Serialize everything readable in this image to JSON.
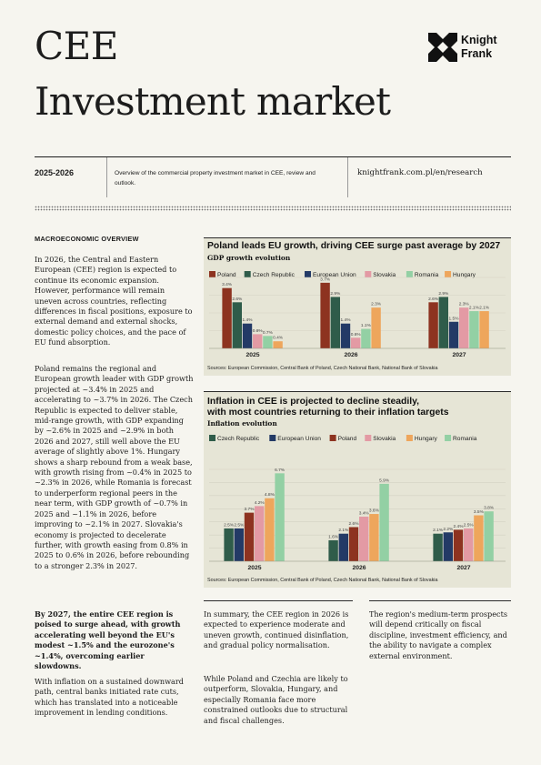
{
  "header": {
    "title_line1": "CEE",
    "title_line2": "Investment market",
    "logo_text_line1": "Knight",
    "logo_text_line2": "Frank"
  },
  "meta": {
    "year": "2025-2026",
    "description": "Overview of the commercial property investment market in CEE, review and outlook.",
    "url": "knightfrank.com.pl/en/research"
  },
  "macro": {
    "heading": "MACROECONOMIC OVERVIEW",
    "p1": "In 2026, the Central and Eastern European (CEE) region is expected to continue its economic expansion. However, performance will remain uneven across countries, reflecting differences in fiscal positions, exposure to external demand and external shocks, domestic policy choices, and the pace of EU fund absorption.",
    "p2": "Poland remains the regional and European growth leader with GDP growth projected at ~3.4% in 2025 and accelerating to ~3.7% in 2026. The Czech Republic is expected to deliver stable, mid-range growth, with GDP expanding by ~2.6% in 2025 and ~2.9% in both 2026 and 2027, still well above the EU average of slightly above 1%. Hungary shows a sharp rebound from a weak base, with growth rising from ~0.4% in 2025 to ~2.3% in 2026, while Romania is forecast to underperform regional peers in the near term, with GDP growth of ~0.7% in 2025 and ~1.1% in 2026, before improving to ~2.1% in 2027. Slovakia's economy is projected to decelerate further, with growth easing from 0.8% in 2025 to 0.6% in 2026, before rebounding to a stronger 2.3% in 2027.",
    "p3": "By 2027, the entire CEE region is poised to surge ahead, with growth accelerating well beyond the EU's modest ~1.5% and the eurozone's ~1.4%, overcoming earlier slowdowns.",
    "p4": "With inflation on a sustained downward path, central banks initiated rate cuts, which has translated into a noticeable improvement in lending conditions."
  },
  "chart1": {
    "title": "Poland leads EU growth, driving CEE surge past average by 2027",
    "subtitle": "GDP growth evolution",
    "source": "Sources: European Commission, Central Bank of Poland, Czech National Bank, National Bank of Slovakia"
  },
  "chart2": {
    "title_line1": "Inflation in CEE is projected to decline steadily,",
    "title_line2": "with most countries returning to their inflation targets",
    "subtitle": "Inflation evolution",
    "source": "Sources: European Commission, Central Bank of Poland, Czech National Bank, National Bank of Slovakia"
  },
  "summary": {
    "p1": "In summary, the CEE region in 2026 is expected to experience moderate and uneven growth, continued disinflation, and gradual policy normalisation.",
    "p2": "While Poland and Czechia are likely to outperform, Slovakia, Hungary, and especially Romania face more constrained outlooks due to structural and fiscal challenges.",
    "p3": "The region's medium-term prospects will depend critically on fiscal discipline, investment efficiency, and the ability to navigate a complex external environment."
  },
  "chart_data": [
    {
      "type": "bar",
      "title": "Poland leads EU growth, driving CEE surge past average by 2027",
      "subtitle": "GDP growth evolution",
      "categories": [
        "2025",
        "2026",
        "2027"
      ],
      "series": [
        {
          "name": "Poland",
          "color": "#8d3320",
          "values": [
            3.4,
            3.7,
            2.6
          ],
          "labels": [
            "3.4%",
            "3.7%",
            "2.6%"
          ]
        },
        {
          "name": "Czech Republic",
          "color": "#2f5c4a",
          "values": [
            2.6,
            2.9,
            2.9
          ],
          "labels": [
            "2.6%",
            "2.9%",
            "2.9%"
          ]
        },
        {
          "name": "European Union",
          "color": "#233a66",
          "values": [
            1.4,
            1.4,
            1.5
          ],
          "labels": [
            "1.4%",
            "1.4%",
            "1.5%"
          ]
        },
        {
          "name": "Slovakia",
          "color": "#e39aa4",
          "values": [
            0.8,
            0.6,
            2.3
          ],
          "labels": [
            "0.8%",
            "0.6%",
            "2.3%"
          ]
        },
        {
          "name": "Romania",
          "color": "#93d0a4",
          "values": [
            0.7,
            1.1,
            2.1
          ],
          "labels": [
            "0.7%",
            "1.1%",
            "2.1%"
          ]
        },
        {
          "name": "Hungary",
          "color": "#eea65c",
          "values": [
            0.4,
            2.3,
            2.1
          ],
          "labels": [
            "0.4%",
            "2.3%",
            "2.1%"
          ]
        }
      ],
      "ylim": [
        0,
        4
      ],
      "legend": "top"
    },
    {
      "type": "bar",
      "title": "Inflation in CEE is projected to decline steadily, with most countries returning to their inflation targets",
      "subtitle": "Inflation evolution",
      "categories": [
        "2025",
        "2026",
        "2027"
      ],
      "series": [
        {
          "name": "Czech Republic",
          "color": "#2f5c4a",
          "values": [
            2.5,
            1.6,
            2.1
          ],
          "labels": [
            "2.5%",
            "1.6%",
            "2.1%"
          ]
        },
        {
          "name": "European Union",
          "color": "#233a66",
          "values": [
            2.5,
            2.1,
            2.2
          ],
          "labels": [
            "2.5%",
            "2.1%",
            "2.2%"
          ]
        },
        {
          "name": "Poland",
          "color": "#8d3320",
          "values": [
            3.7,
            2.6,
            2.4
          ],
          "labels": [
            "3.7%",
            "2.6%",
            "2.4%"
          ]
        },
        {
          "name": "Slovakia",
          "color": "#e39aa4",
          "values": [
            4.2,
            3.4,
            2.5
          ],
          "labels": [
            "4.2%",
            "3.4%",
            "2.5%"
          ]
        },
        {
          "name": "Hungary",
          "color": "#eea65c",
          "values": [
            4.8,
            3.6,
            3.5
          ],
          "labels": [
            "4.8%",
            "3.6%",
            "3.5%"
          ]
        },
        {
          "name": "Romania",
          "color": "#93d0a4",
          "values": [
            6.7,
            5.9,
            3.8
          ],
          "labels": [
            "6.7%",
            "5.9%",
            "3.8%"
          ]
        }
      ],
      "ylim": [
        0,
        7
      ],
      "legend": "top"
    }
  ]
}
